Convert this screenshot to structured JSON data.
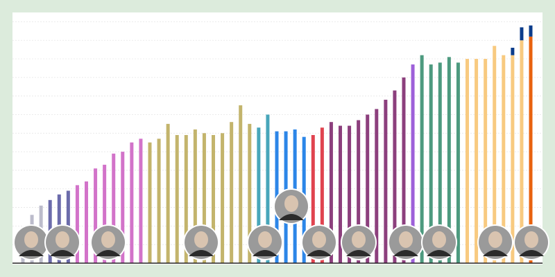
{
  "chart_data": {
    "type": "bar",
    "stacked": true,
    "ylim": [
      0,
      13.5
    ],
    "yticks": [
      0,
      1,
      2,
      3,
      4,
      5,
      6,
      7,
      8,
      9,
      10,
      11,
      12,
      13
    ],
    "grid": true,
    "series": [
      {
        "colors": [
          "#bcbccb",
          "#bcbccb",
          "#bcbccb",
          "#6b6bab",
          "#6b6bab",
          "#6b6bab",
          "#d273c9",
          "#d273c9",
          "#d273c9",
          "#d273c9",
          "#d273c9",
          "#d273c9",
          "#d273c9",
          "#d273c9",
          "#c3b46c",
          "#c3b46c",
          "#c3b46c",
          "#c3b46c",
          "#c3b46c",
          "#c3b46c",
          "#c3b46c",
          "#c3b46c",
          "#c3b46c",
          "#c3b46c",
          "#c3b46c",
          "#c3b46c",
          "#48a6ba",
          "#48a6ba",
          "#2c86e8",
          "#2c86e8",
          "#2c86e8",
          "#2c86e8",
          "#e0434f",
          "#e0434f",
          "#8c3f7d",
          "#8c3f7d",
          "#8c3f7d",
          "#8c3f7d",
          "#8c3f7d",
          "#8c3f7d",
          "#8c3f7d",
          "#8c3f7d",
          "#8c3f7d",
          "#9d60d9",
          "#4d9a7f",
          "#4d9a7f",
          "#4d9a7f",
          "#4d9a7f",
          "#4d9a7f",
          "#f8ca80",
          "#f8ca80",
          "#f8ca80",
          "#f8ca80",
          "#f8ca80",
          "#f8ca80",
          "#f8ca80",
          "#e8620f"
        ],
        "values": [
          1.9,
          2.6,
          3.1,
          3.4,
          3.7,
          3.9,
          4.2,
          4.4,
          5.1,
          5.3,
          5.9,
          6.0,
          6.5,
          6.7,
          6.5,
          6.7,
          7.5,
          6.9,
          6.9,
          7.2,
          7.0,
          6.9,
          7.0,
          7.6,
          8.5,
          7.5,
          7.3,
          8.0,
          7.1,
          7.1,
          7.2,
          6.8,
          6.9,
          7.3,
          7.6,
          7.4,
          7.4,
          7.7,
          8.0,
          8.3,
          8.8,
          9.3,
          10.0,
          10.7,
          11.2,
          10.7,
          10.8,
          11.1,
          10.8,
          11.0,
          11.0,
          11.0,
          11.7,
          11.2,
          11.2,
          12.0,
          12.2
        ]
      },
      {
        "color": "#0b3c8b",
        "values": [
          null,
          null,
          null,
          null,
          null,
          null,
          null,
          null,
          null,
          null,
          null,
          null,
          null,
          null,
          null,
          null,
          null,
          null,
          null,
          null,
          null,
          null,
          null,
          null,
          null,
          null,
          null,
          null,
          null,
          null,
          null,
          null,
          null,
          null,
          null,
          null,
          null,
          null,
          null,
          null,
          null,
          null,
          null,
          null,
          null,
          null,
          null,
          null,
          null,
          null,
          null,
          null,
          null,
          null,
          0.4,
          0.7,
          0.6
        ]
      }
    ]
  }
}
